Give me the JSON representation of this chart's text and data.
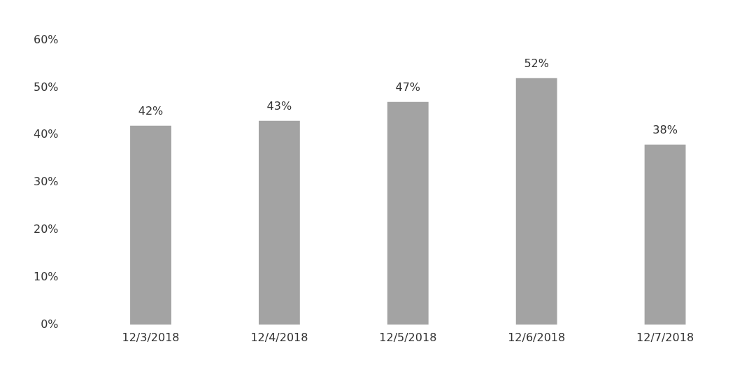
{
  "chart_data": {
    "type": "bar",
    "categories": [
      "12/3/2018",
      "12/4/2018",
      "12/5/2018",
      "12/6/2018",
      "12/7/2018"
    ],
    "values": [
      42,
      43,
      47,
      52,
      38
    ],
    "value_labels": [
      "42%",
      "43%",
      "47%",
      "52%",
      "38%"
    ],
    "color": "#a3a3a3",
    "ylim": [
      0,
      60
    ],
    "yticks": [
      {
        "value": 0,
        "label": "0%"
      },
      {
        "value": 10,
        "label": "10%"
      },
      {
        "value": 20,
        "label": "20%"
      },
      {
        "value": 30,
        "label": "30%"
      },
      {
        "value": 40,
        "label": "40%"
      },
      {
        "value": 50,
        "label": "50%"
      },
      {
        "value": 60,
        "label": "60%"
      }
    ],
    "grid": false,
    "legend": false
  }
}
